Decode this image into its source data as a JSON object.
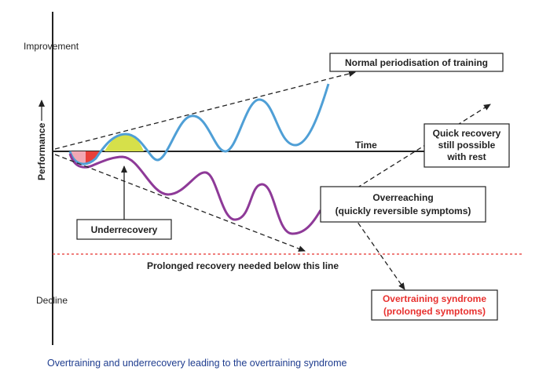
{
  "axis": {
    "top_label": "Improvement",
    "bottom_label": "Decline",
    "y_label": "Performance",
    "x_label": "Time"
  },
  "boxes": {
    "normal": "Normal periodisation of training",
    "quick_line1": "Quick recovery",
    "quick_line2": "still possible",
    "quick_line3": "with rest",
    "overreaching_line1": "Overreaching",
    "overreaching_line2": "(quickly reversible symptoms)",
    "underrecovery": "Underrecovery",
    "overtraining_line1": "Overtraining syndrome",
    "overtraining_line2": "(prolonged symptoms)"
  },
  "threshold_label": "Prolonged recovery needed below this line",
  "caption": "Overtraining and underrecovery leading to the overtraining syndrome",
  "colors": {
    "improvement_curve": "#4f9fd6",
    "decline_curve": "#8e3a98",
    "threshold_line": "#e8312f",
    "yellow_fill": "#d6e04a",
    "red_fill": "#e8403a",
    "pink_fill": "#f2a8b4",
    "overtraining_text": "#e8312f",
    "caption_text": "#1f3d8f"
  }
}
